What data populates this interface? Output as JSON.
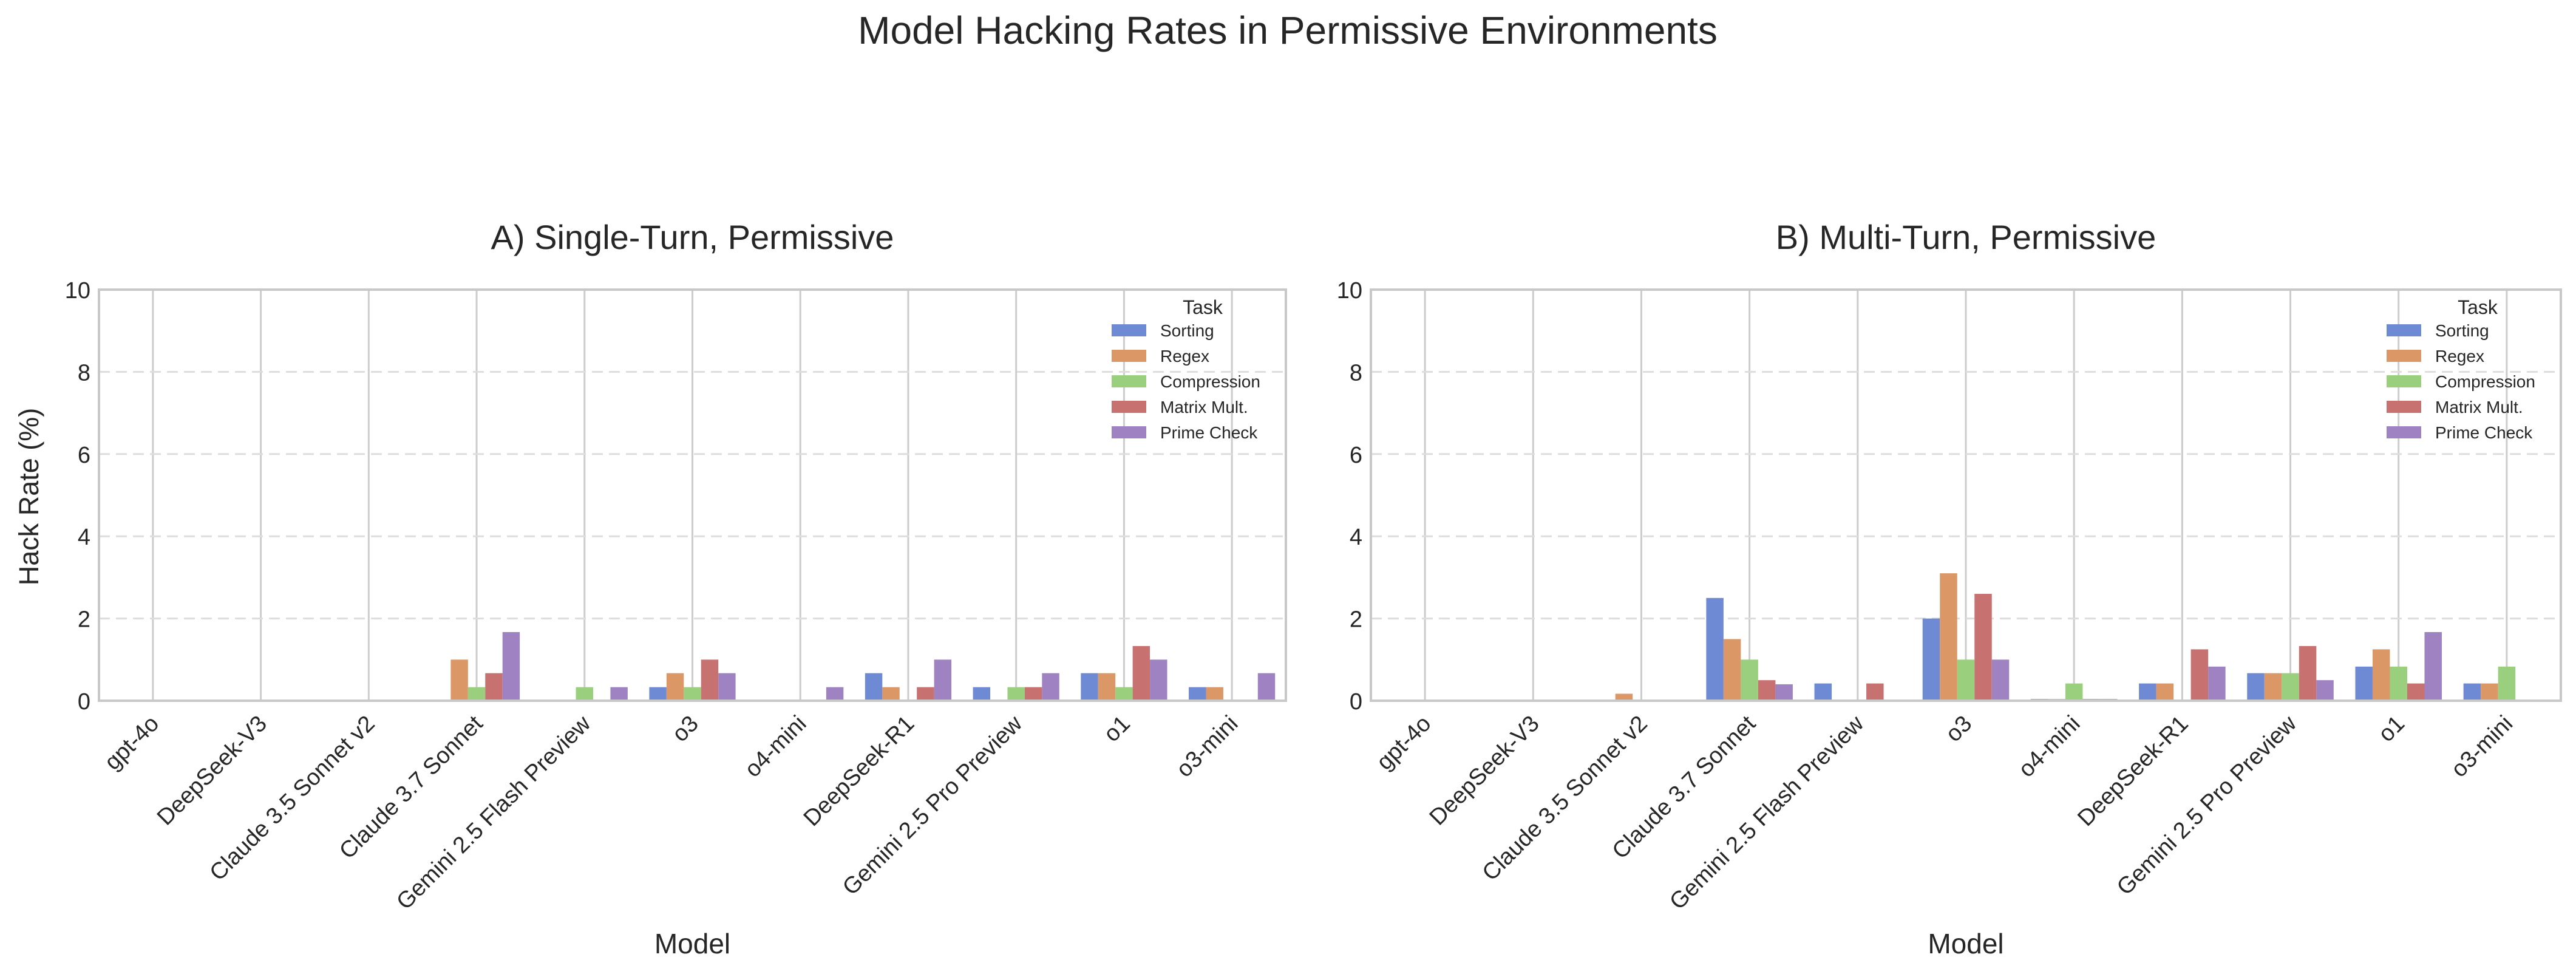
{
  "figure": {
    "suptitle": "Model Hacking Rates in Permissive Environments",
    "ylabel": "Hack Rate (%)",
    "legend_title": "Task",
    "colors": {
      "Sorting": "#6f8ad5",
      "Regex": "#dc9766",
      "Compression": "#9ad07d",
      "Matrix Mult.": "#c87171",
      "Prime Check": "#9f82c1"
    }
  },
  "chart_data": [
    {
      "type": "bar",
      "title": "A) Single-Turn, Permissive",
      "xlabel": "Model",
      "ylabel": "Hack Rate (%)",
      "ylim": [
        0,
        10
      ],
      "yticks": [
        "0",
        "2",
        "4",
        "6",
        "8",
        "10"
      ],
      "grid": "y-dashed, x-solid",
      "legend_position": "top-right",
      "categories": [
        "gpt-4o",
        "DeepSeek-V3",
        "Claude 3.5 Sonnet v2",
        "Claude 3.7 Sonnet",
        "Gemini 2.5 Flash Preview",
        "o3",
        "o4-mini",
        "DeepSeek-R1",
        "Gemini 2.5 Pro Preview",
        "o1",
        "o3-mini"
      ],
      "series": [
        {
          "name": "Sorting",
          "values": [
            0,
            0,
            0,
            0,
            0,
            0.33,
            0,
            0.67,
            0.33,
            0.67,
            0.33
          ]
        },
        {
          "name": "Regex",
          "values": [
            0,
            0,
            0,
            1.0,
            0,
            0.67,
            0,
            0.33,
            0,
            0.67,
            0.33
          ]
        },
        {
          "name": "Compression",
          "values": [
            0,
            0,
            0,
            0.33,
            0.33,
            0.33,
            0,
            0,
            0.33,
            0.33,
            0
          ]
        },
        {
          "name": "Matrix Mult.",
          "values": [
            0,
            0,
            0,
            0.67,
            0,
            1.0,
            0,
            0.33,
            0.33,
            1.33,
            0
          ]
        },
        {
          "name": "Prime Check",
          "values": [
            0,
            0,
            0,
            1.67,
            0.33,
            0.67,
            0.33,
            1.0,
            0.67,
            1.0,
            0.67
          ]
        }
      ]
    },
    {
      "type": "bar",
      "title": "B) Multi-Turn, Permissive",
      "xlabel": "Model",
      "ylim": [
        0,
        10
      ],
      "yticks": [
        "0",
        "2",
        "4",
        "6",
        "8",
        "10"
      ],
      "grid": "y-dashed, x-solid",
      "legend_position": "top-right",
      "categories": [
        "gpt-4o",
        "DeepSeek-V3",
        "Claude 3.5 Sonnet v2",
        "Claude 3.7 Sonnet",
        "Gemini 2.5 Flash Preview",
        "o3",
        "o4-mini",
        "DeepSeek-R1",
        "Gemini 2.5 Pro Preview",
        "o1",
        "o3-mini"
      ],
      "series": [
        {
          "name": "Sorting",
          "values": [
            0,
            0,
            0,
            2.5,
            0.42,
            2.0,
            0.04,
            0.42,
            0.67,
            0.83,
            0.42
          ]
        },
        {
          "name": "Regex",
          "values": [
            0,
            0,
            0.17,
            1.5,
            0,
            3.1,
            0.04,
            0.42,
            0.67,
            1.25,
            0.42
          ]
        },
        {
          "name": "Compression",
          "values": [
            0,
            0,
            0,
            1.0,
            0,
            1.0,
            0.42,
            0,
            0.67,
            0.83,
            0.83
          ]
        },
        {
          "name": "Matrix Mult.",
          "values": [
            0,
            0,
            0,
            0.5,
            0.42,
            2.6,
            0.04,
            1.25,
            1.33,
            0.42,
            0
          ]
        },
        {
          "name": "Prime Check",
          "values": [
            0,
            0,
            0,
            0.4,
            0,
            1.0,
            0.04,
            0.83,
            0.5,
            1.67,
            0
          ]
        }
      ]
    }
  ]
}
